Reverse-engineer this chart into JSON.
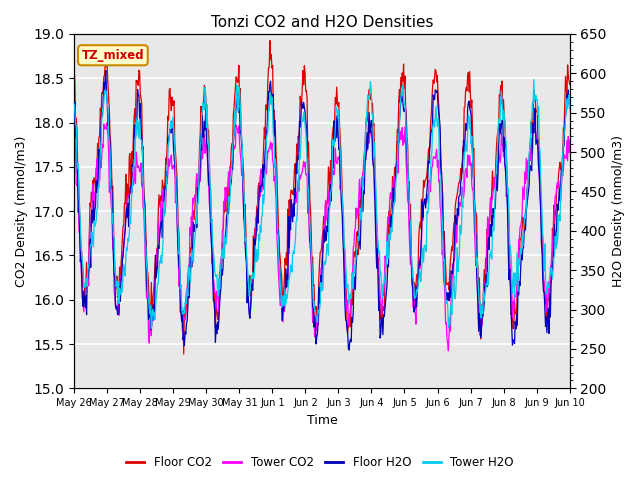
{
  "title": "Tonzi CO2 and H2O Densities",
  "xlabel": "Time",
  "ylabel_left": "CO2 Density (mmol/m3)",
  "ylabel_right": "H2O Density (mmol/m3)",
  "annotation": "TZ_mixed",
  "annotation_color": "#cc0000",
  "annotation_bg": "#ffffcc",
  "annotation_border": "#cc8800",
  "ylim_left": [
    15.0,
    19.0
  ],
  "ylim_right": [
    200,
    650
  ],
  "xtick_labels": [
    "May 26",
    "May 27",
    "May 28",
    "May 29",
    "May 30",
    "May 31",
    "Jun 1",
    "Jun 2",
    "Jun 3",
    "Jun 4",
    "Jun 5",
    "Jun 6",
    "Jun 7",
    "Jun 8",
    "Jun 9",
    "Jun 10"
  ],
  "colors": {
    "floor_co2": "#dd0000",
    "tower_co2": "#ff00ff",
    "floor_h2o": "#0000bb",
    "tower_h2o": "#00ccee"
  },
  "legend_labels": [
    "Floor CO2",
    "Tower CO2",
    "Floor H2O",
    "Tower H2O"
  ],
  "plot_bg": "#e8e8e8",
  "fig_bg": "white",
  "grid_color": "white",
  "yticks_left": [
    15.0,
    15.5,
    16.0,
    16.5,
    17.0,
    17.5,
    18.0,
    18.5,
    19.0
  ],
  "yticks_right": [
    200,
    250,
    300,
    350,
    400,
    450,
    500,
    550,
    600,
    650
  ],
  "n_points": 720
}
